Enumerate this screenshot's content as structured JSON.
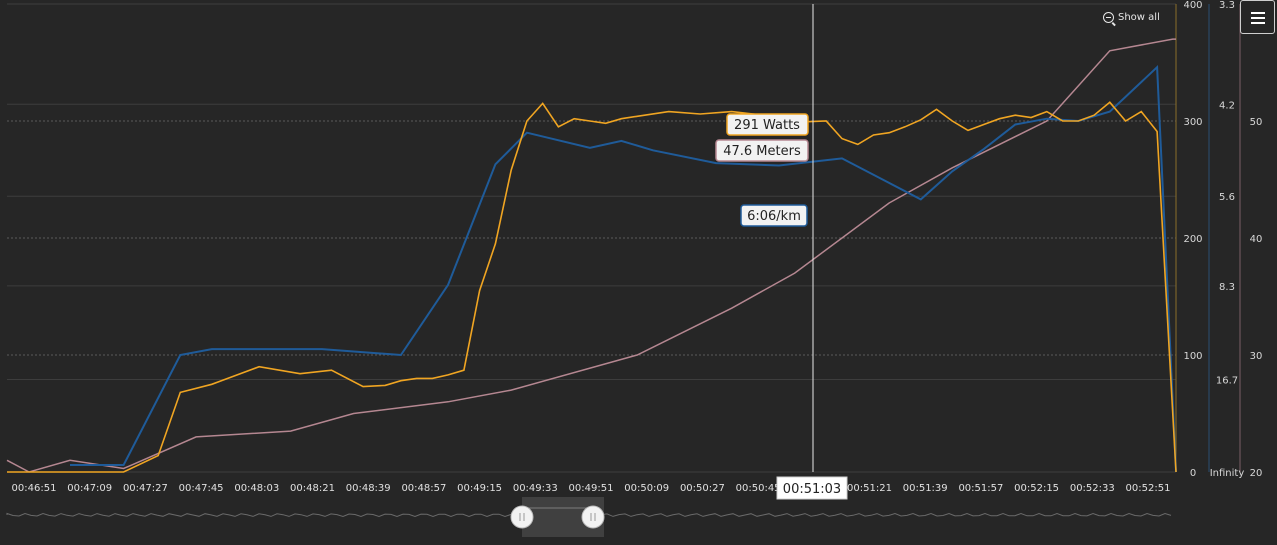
{
  "toolbar": {
    "show_all_label": "Show all",
    "menu_icon": "hamburger-menu-icon"
  },
  "crosshair": {
    "time_label": "00:51:03"
  },
  "tooltips": {
    "power": "291 Watts",
    "elevation": "47.6 Meters",
    "pace": "6:06/km"
  },
  "colors": {
    "power": "#f0a522",
    "pace": "#1f5b99",
    "elevation": "#b58791",
    "background": "#262626"
  },
  "chart_data": {
    "type": "line",
    "x_ticks": [
      "00:46:51",
      "00:47:09",
      "00:47:27",
      "00:47:45",
      "00:48:03",
      "00:48:21",
      "00:48:39",
      "00:48:57",
      "00:49:15",
      "00:49:33",
      "00:49:51",
      "00:50:09",
      "00:50:27",
      "00:50:45",
      "00:51:03",
      "00:51:21",
      "00:51:39",
      "00:51:57",
      "00:52:15",
      "00:52:33",
      "00:52:51"
    ],
    "x_range_seconds": [
      0,
      371
    ],
    "axes": {
      "power": {
        "ticks": [
          "0",
          "100",
          "200",
          "300",
          "400"
        ],
        "range": [
          0,
          400
        ]
      },
      "pace": {
        "ticks": [
          "3.3",
          "4.2",
          "5.6",
          "8.3",
          "16.7",
          "Infinity"
        ]
      },
      "elevation": {
        "ticks": [
          "20",
          "30",
          "40",
          "50"
        ],
        "range": [
          20,
          60
        ]
      }
    },
    "series": [
      {
        "key": "power",
        "unit": "Watts",
        "x": [
          0,
          7,
          20,
          37,
          48,
          55,
          65,
          80,
          93,
          103,
          113,
          120,
          125,
          130,
          135,
          140,
          145,
          150,
          155,
          160,
          165,
          170,
          175,
          180,
          185,
          190,
          195,
          200,
          210,
          220,
          230,
          240,
          250,
          260,
          265,
          270,
          275,
          280,
          285,
          290,
          295,
          300,
          305,
          310,
          315,
          320,
          325,
          330,
          335,
          340,
          345,
          350,
          355,
          360,
          365,
          371
        ],
        "y": [
          0,
          -5,
          -5,
          0,
          14,
          68,
          75,
          90,
          84,
          87,
          73,
          74,
          78,
          80,
          80,
          83,
          87,
          155,
          195,
          258,
          300,
          315,
          295,
          302,
          300,
          298,
          302,
          304,
          308,
          306,
          308,
          305,
          299,
          300,
          285,
          280,
          288,
          290,
          295,
          301,
          310,
          300,
          292,
          297,
          302,
          305,
          303,
          308,
          300,
          300,
          305,
          316,
          300,
          308,
          291,
          0
        ]
      },
      {
        "key": "elevation",
        "unit": "Meters",
        "x": [
          0,
          7,
          20,
          37,
          60,
          90,
          110,
          140,
          160,
          200,
          230,
          250,
          280,
          300,
          330,
          350,
          370,
          371
        ],
        "y": [
          21,
          20,
          21,
          20.3,
          23,
          23.5,
          25,
          26,
          27,
          30,
          34,
          37,
          43,
          46,
          50,
          56,
          57,
          57
        ]
      }
    ],
    "pace_points": {
      "x": [
        20,
        37,
        55,
        65,
        80,
        100,
        125,
        140,
        155,
        165,
        185,
        195,
        205,
        225,
        245,
        265,
        280,
        290,
        300,
        310,
        320,
        330,
        340,
        350,
        365,
        371
      ],
      "y": [
        6,
        6,
        100,
        105,
        105,
        105,
        100,
        160,
        263,
        290,
        277,
        283,
        275,
        264,
        262,
        268,
        247,
        233,
        257,
        276,
        297,
        302,
        300,
        308,
        346,
        0
      ]
    }
  }
}
